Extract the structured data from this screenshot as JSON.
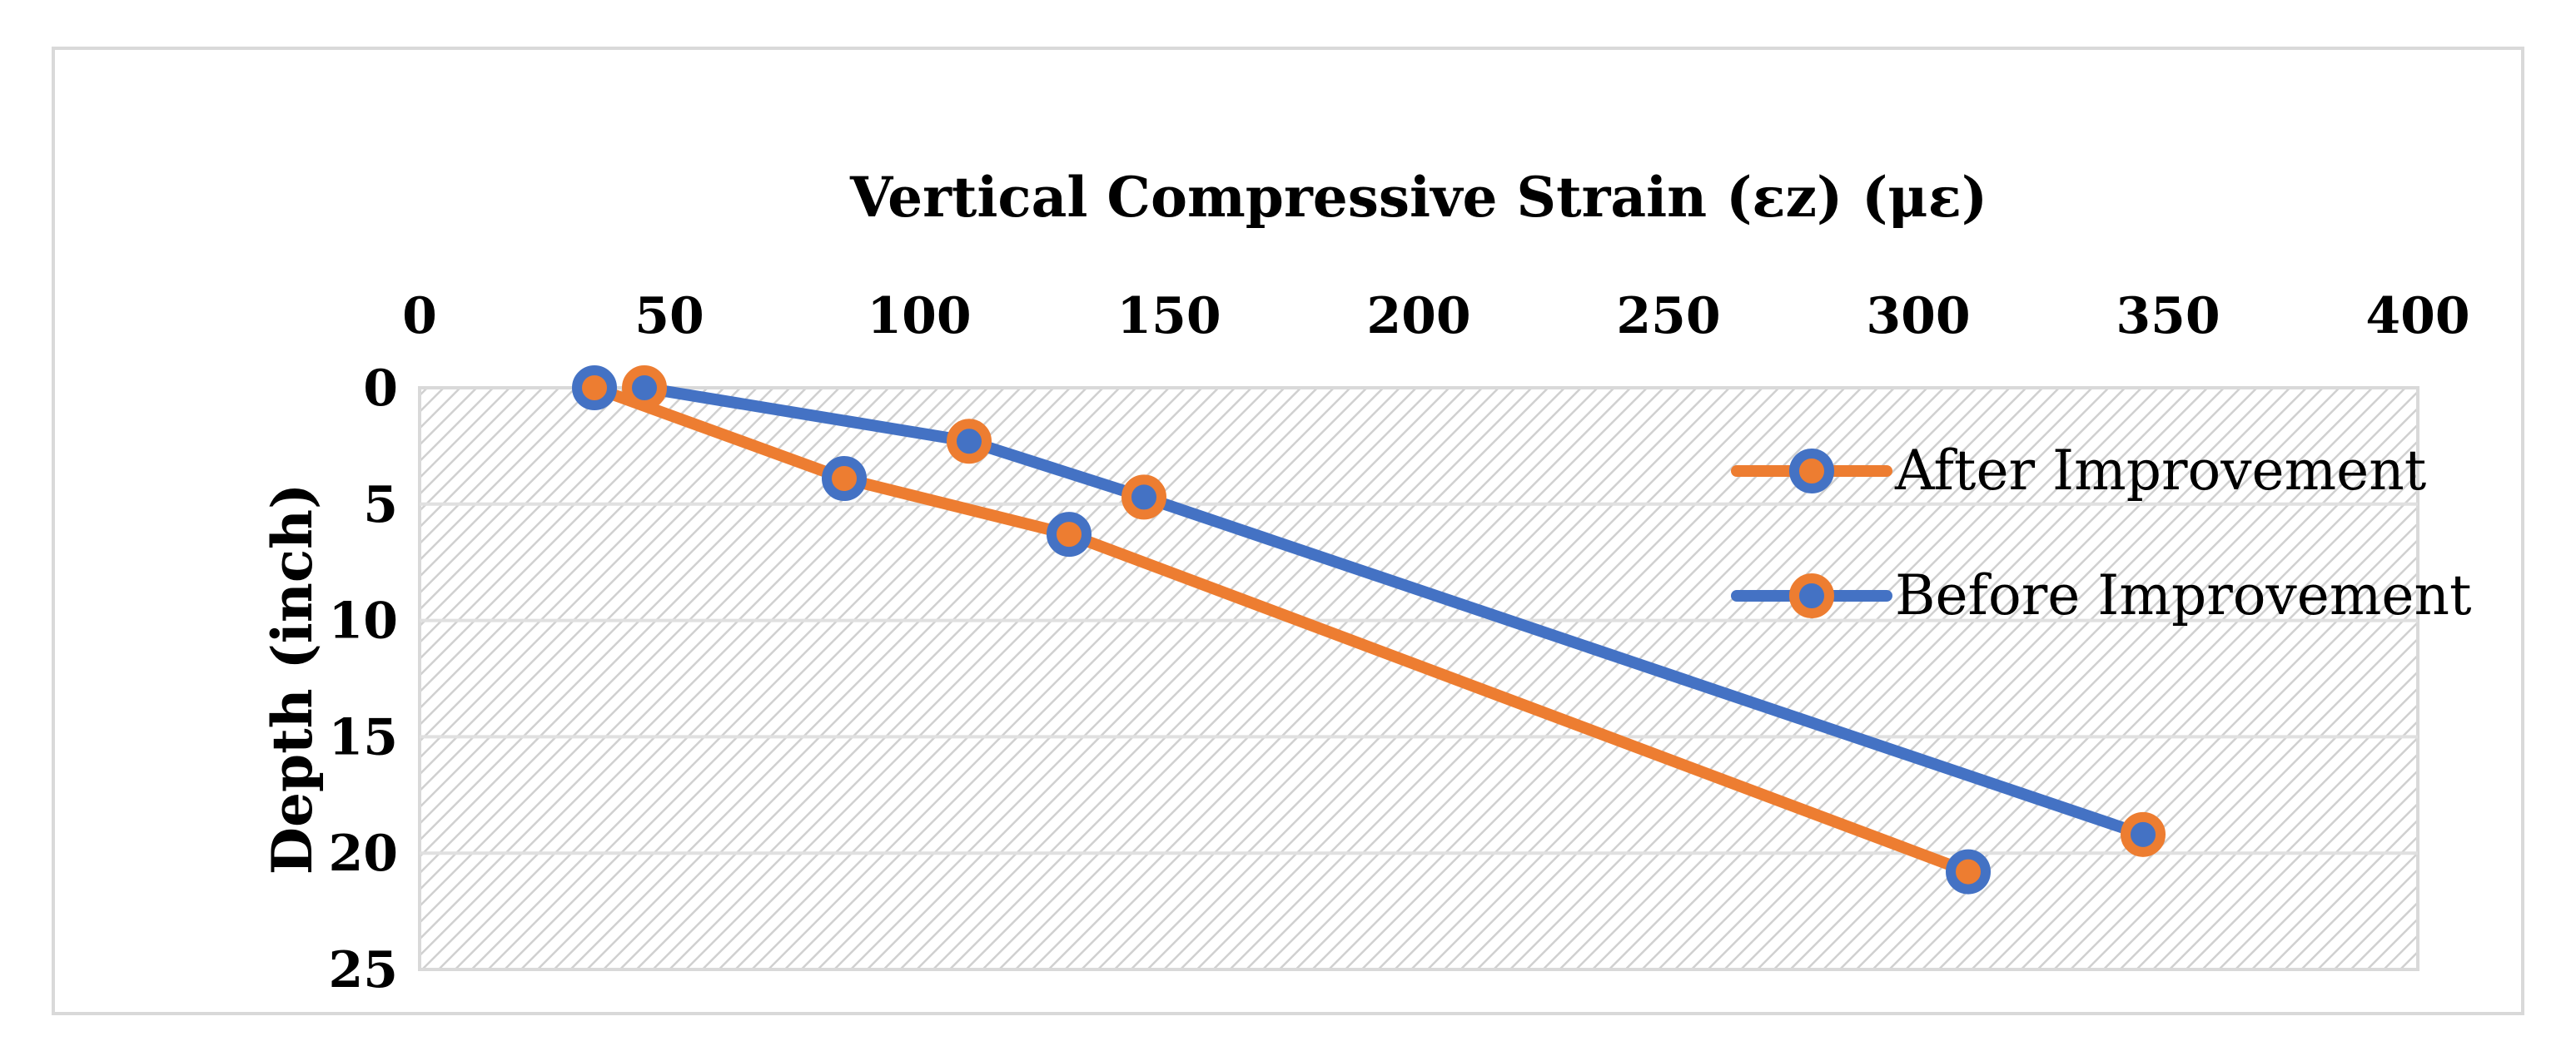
{
  "chart_data": {
    "type": "line",
    "title": "",
    "xlabel": "Vertical Compressive Strain (εz) (με)",
    "ylabel": "Depth (inch)",
    "xlim": [
      0,
      400
    ],
    "ylim": [
      0,
      25
    ],
    "x_ticks": [
      0,
      50,
      100,
      150,
      200,
      250,
      300,
      350,
      400
    ],
    "y_ticks": [
      0,
      5,
      10,
      15,
      20,
      25
    ],
    "x_axis_position": "top",
    "y_axis_reversed": true,
    "grid": true,
    "plot_area_fill": "diagonal-hatch",
    "legend_position": "right",
    "series": [
      {
        "name": "After Improvement",
        "line_color": "#ED7D31",
        "marker_fill": "#ED7D31",
        "marker_edge": "#4472C4",
        "points": [
          {
            "x": 35,
            "y": 0
          },
          {
            "x": 85,
            "y": 3.9
          },
          {
            "x": 130,
            "y": 6.3
          },
          {
            "x": 310,
            "y": 20.8
          }
        ]
      },
      {
        "name": "Before Improvement",
        "line_color": "#4472C4",
        "marker_fill": "#4472C4",
        "marker_edge": "#ED7D31",
        "points": [
          {
            "x": 45,
            "y": 0
          },
          {
            "x": 110,
            "y": 2.3
          },
          {
            "x": 145,
            "y": 4.7
          },
          {
            "x": 345,
            "y": 19.2
          }
        ]
      }
    ]
  }
}
